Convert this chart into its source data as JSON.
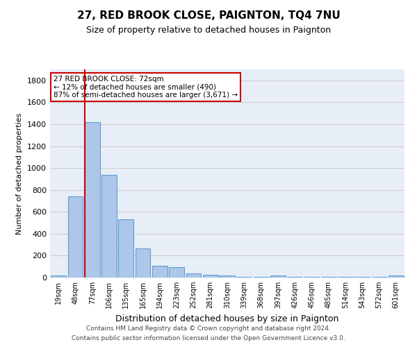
{
  "title": "27, RED BROOK CLOSE, PAIGNTON, TQ4 7NU",
  "subtitle": "Size of property relative to detached houses in Paignton",
  "xlabel": "Distribution of detached houses by size in Paignton",
  "ylabel": "Number of detached properties",
  "categories": [
    "19sqm",
    "48sqm",
    "77sqm",
    "106sqm",
    "135sqm",
    "165sqm",
    "194sqm",
    "223sqm",
    "252sqm",
    "281sqm",
    "310sqm",
    "339sqm",
    "368sqm",
    "397sqm",
    "426sqm",
    "456sqm",
    "485sqm",
    "514sqm",
    "543sqm",
    "572sqm",
    "601sqm"
  ],
  "values": [
    22,
    740,
    1420,
    935,
    530,
    265,
    105,
    95,
    40,
    28,
    22,
    5,
    5,
    18,
    5,
    5,
    5,
    5,
    5,
    5,
    18
  ],
  "bar_color": "#aec6e8",
  "bar_edge_color": "#5a9fd4",
  "annotation_title": "27 RED BROOK CLOSE: 72sqm",
  "annotation_line1": "← 12% of detached houses are smaller (490)",
  "annotation_line2": "87% of semi-detached houses are larger (3,671) →",
  "annotation_box_color": "#ffffff",
  "annotation_box_edge": "#cc0000",
  "red_line_color": "#cc0000",
  "grid_color": "#cccccc",
  "background_color": "#e8eef7",
  "footer1": "Contains HM Land Registry data © Crown copyright and database right 2024.",
  "footer2": "Contains public sector information licensed under the Open Government Licence v3.0.",
  "ylim": [
    0,
    1900
  ],
  "yticks": [
    0,
    200,
    400,
    600,
    800,
    1000,
    1200,
    1400,
    1600,
    1800
  ],
  "red_line_bar_index": 2,
  "title_fontsize": 11,
  "subtitle_fontsize": 9,
  "ylabel_fontsize": 8,
  "xlabel_fontsize": 9,
  "tick_fontsize": 8,
  "xtick_fontsize": 7
}
